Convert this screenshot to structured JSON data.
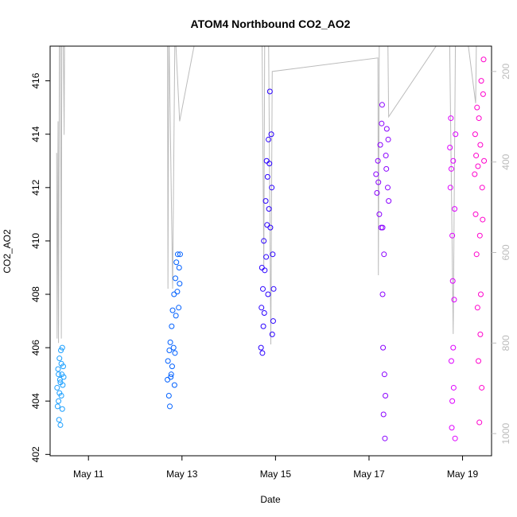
{
  "chart_data": {
    "type": "scatter",
    "title": "ATOM4 Northbound CO2_AO2",
    "x_label": "Date",
    "y_label": "CO2_AO2",
    "xlim": [
      10.18,
      19.62
    ],
    "xticks": [
      {
        "value": 11,
        "label": "May 11"
      },
      {
        "value": 13,
        "label": "May 13"
      },
      {
        "value": 15,
        "label": "May 15"
      },
      {
        "value": 17,
        "label": "May 17"
      },
      {
        "value": 19,
        "label": "May 19"
      }
    ],
    "ylim": [
      401.95,
      417.3
    ],
    "yticks": [
      402,
      404,
      406,
      408,
      410,
      412,
      414,
      416
    ],
    "y2lim": [
      1049,
      144
    ],
    "y2ticks": [
      200,
      400,
      600,
      800,
      1000
    ],
    "series": [
      {
        "color": "#bbbbbb",
        "mode": "line",
        "axis": "y2",
        "x": [
          10.32,
          10.33,
          10.35,
          10.36,
          10.38,
          10.4,
          10.42,
          10.43,
          10.46,
          10.48,
          10.49,
          12.69,
          12.7,
          12.72,
          12.8,
          12.85,
          12.95,
          13.34,
          14.71,
          14.75,
          14.77,
          14.85,
          14.9,
          14.93,
          17.19,
          17.2,
          17.22,
          17.4,
          17.42,
          18.72,
          18.8,
          18.85,
          19.07,
          19.28,
          19.3,
          19.4
        ],
        "values": [
          380,
          790,
          310,
          800,
          100,
          100,
          790,
          100,
          100,
          340,
          100,
          100,
          680,
          100,
          680,
          100,
          310,
          100,
          100,
          630,
          100,
          100,
          803,
          200,
          170,
          650,
          100,
          100,
          300,
          100,
          780,
          100,
          100,
          270,
          100,
          100
        ]
      },
      {
        "color": "#1a9fff",
        "mode": "points",
        "x": [
          10.33,
          10.34,
          10.35,
          10.36,
          10.37,
          10.38,
          10.39,
          10.4,
          10.41,
          10.42,
          10.43,
          10.44,
          10.45,
          10.46,
          10.47,
          10.38,
          10.4,
          10.42,
          10.36,
          10.44
        ],
        "values": [
          404.5,
          403.8,
          405.2,
          404.0,
          403.3,
          405.6,
          404.8,
          403.1,
          405.9,
          404.2,
          405.0,
          406.0,
          404.6,
          405.3,
          404.9,
          404.3,
          404.7,
          405.4,
          405.0,
          403.7
        ]
      },
      {
        "color": "#0060ff",
        "mode": "points",
        "x": [
          12.69,
          12.7,
          12.72,
          12.73,
          12.74,
          12.75,
          12.76,
          12.78,
          12.79,
          12.8,
          12.82,
          12.83,
          12.84,
          12.86,
          12.87,
          12.88,
          12.9,
          12.91,
          12.93,
          12.94,
          12.95,
          12.96,
          12.85,
          12.77
        ],
        "values": [
          404.8,
          405.5,
          404.2,
          405.9,
          403.8,
          406.2,
          404.9,
          406.8,
          405.3,
          407.4,
          406.0,
          408.0,
          404.6,
          408.6,
          407.2,
          409.2,
          408.1,
          409.5,
          407.5,
          409.0,
          408.4,
          409.5,
          405.8,
          405.0
        ]
      },
      {
        "color": "#2a00ff",
        "mode": "points",
        "x": [
          14.69,
          14.7,
          14.71,
          14.72,
          14.73,
          14.74,
          14.75,
          14.76,
          14.77,
          14.79,
          14.8,
          14.81,
          14.82,
          14.83,
          14.84,
          14.85,
          14.86,
          14.87,
          14.88,
          14.89,
          14.91,
          14.92,
          14.93,
          14.94,
          14.95,
          14.96
        ],
        "values": [
          406.0,
          407.5,
          409.0,
          405.8,
          408.2,
          406.8,
          410.0,
          407.3,
          408.9,
          411.5,
          409.4,
          413.0,
          410.6,
          412.4,
          408.0,
          413.8,
          411.2,
          412.9,
          415.6,
          410.5,
          414.0,
          412.0,
          406.5,
          409.5,
          407.0,
          408.2
        ]
      },
      {
        "color": "#8a00ff",
        "mode": "points",
        "x": [
          17.15,
          17.17,
          17.19,
          17.2,
          17.22,
          17.24,
          17.26,
          17.27,
          17.28,
          17.29,
          17.3,
          17.31,
          17.32,
          17.33,
          17.34,
          17.35,
          17.36,
          17.37,
          17.38,
          17.4,
          17.41,
          17.42,
          17.29
        ],
        "values": [
          412.5,
          411.8,
          413.0,
          412.2,
          411.0,
          413.6,
          410.5,
          414.4,
          415.1,
          408.0,
          406.0,
          403.5,
          409.5,
          405.0,
          402.6,
          404.2,
          413.2,
          412.7,
          414.2,
          412.0,
          413.8,
          411.5,
          410.5
        ]
      },
      {
        "color": "#dd00ff",
        "mode": "points",
        "x": [
          18.73,
          18.74,
          18.75,
          18.76,
          18.77,
          18.78,
          18.79,
          18.8,
          18.81,
          18.82,
          18.83,
          18.84,
          18.85,
          18.76,
          18.8,
          18.78
        ],
        "values": [
          413.5,
          412.0,
          414.6,
          405.5,
          403.0,
          410.2,
          408.5,
          413.0,
          404.5,
          407.8,
          411.2,
          402.6,
          414.0,
          412.7,
          406.0,
          404.0
        ]
      },
      {
        "color": "#ff00cc",
        "mode": "points",
        "x": [
          19.26,
          19.27,
          19.28,
          19.29,
          19.3,
          19.31,
          19.32,
          19.33,
          19.34,
          19.35,
          19.36,
          19.37,
          19.38,
          19.39,
          19.4,
          19.41,
          19.42,
          19.43,
          19.44,
          19.45,
          19.46,
          19.38
        ],
        "values": [
          412.5,
          414.0,
          411.0,
          413.2,
          409.5,
          415.0,
          407.5,
          412.8,
          405.5,
          414.6,
          403.2,
          410.2,
          413.6,
          408.0,
          416.0,
          404.5,
          412.0,
          410.8,
          415.5,
          416.8,
          413.0,
          406.5
        ]
      }
    ]
  }
}
